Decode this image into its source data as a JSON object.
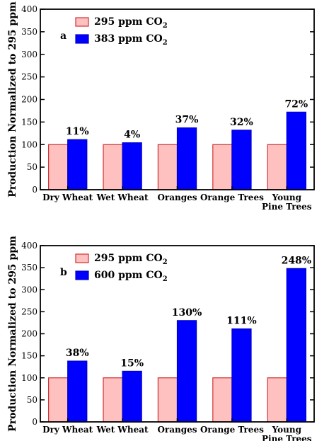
{
  "chart_data": [
    {
      "type": "bar",
      "panel_label": "a",
      "ylabel": "Production Normalized to 295 ppm",
      "ylim": [
        0,
        400
      ],
      "yticks": [
        "0",
        "50",
        "100",
        "150",
        "200",
        "250",
        "300",
        "350",
        "400"
      ],
      "categories": [
        [
          "Dry Wheat"
        ],
        [
          "Wet Wheat"
        ],
        [
          "Oranges"
        ],
        [
          "Orange Trees"
        ],
        [
          "Young",
          "Pine Trees"
        ]
      ],
      "series": [
        {
          "name": "295 ppm CO",
          "name_sub": "2",
          "color": "#ffc0c0",
          "stroke": "#d03030",
          "values": [
            100,
            100,
            100,
            100,
            100
          ]
        },
        {
          "name": "383 ppm CO",
          "name_sub": "2",
          "color": "#0000ff",
          "stroke": "#0000cc",
          "values": [
            111,
            104,
            137,
            132,
            172
          ]
        }
      ],
      "annotations": [
        "11%",
        "4%",
        "37%",
        "32%",
        "72%"
      ],
      "legend_position": "top-left"
    },
    {
      "type": "bar",
      "panel_label": "b",
      "ylabel": "Production Normalized to 295 ppm",
      "ylim": [
        0,
        400
      ],
      "yticks": [
        "0",
        "50",
        "100",
        "150",
        "200",
        "250",
        "300",
        "350",
        "400"
      ],
      "categories": [
        [
          "Dry Wheat"
        ],
        [
          "Wet Wheat"
        ],
        [
          "Oranges"
        ],
        [
          "Orange Trees"
        ],
        [
          "Young",
          "Pine Trees"
        ]
      ],
      "series": [
        {
          "name": "295 ppm CO",
          "name_sub": "2",
          "color": "#ffc0c0",
          "stroke": "#d03030",
          "values": [
            100,
            100,
            100,
            100,
            100
          ]
        },
        {
          "name": "600 ppm CO",
          "name_sub": "2",
          "color": "#0000ff",
          "stroke": "#0000cc",
          "values": [
            138,
            115,
            230,
            211,
            348
          ]
        }
      ],
      "annotations": [
        "38%",
        "15%",
        "130%",
        "111%",
        "248%"
      ],
      "legend_position": "top-left"
    }
  ]
}
